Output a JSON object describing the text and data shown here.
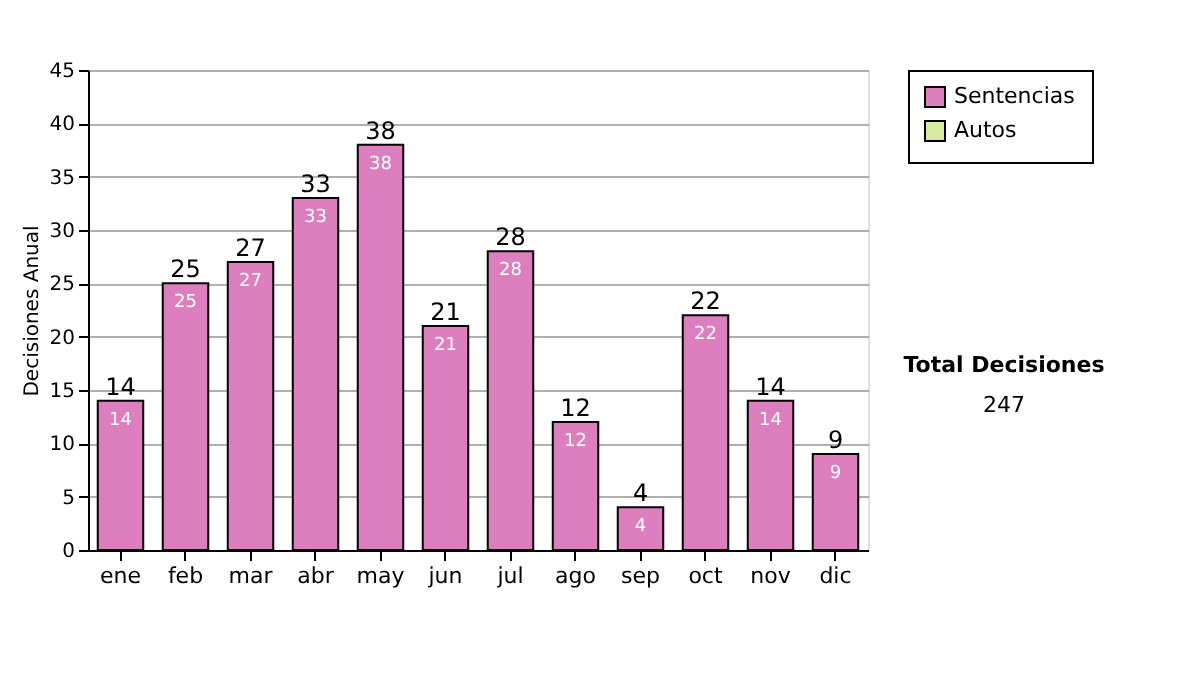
{
  "chart_data": {
    "type": "bar",
    "ylabel": "Decisiones Anual",
    "categories": [
      "ene",
      "feb",
      "mar",
      "abr",
      "may",
      "jun",
      "jul",
      "ago",
      "sep",
      "oct",
      "nov",
      "dic"
    ],
    "series": [
      {
        "name": "Sentencias",
        "color": "#dd7fbf",
        "values": [
          14,
          25,
          27,
          33,
          38,
          21,
          28,
          12,
          4,
          22,
          14,
          9
        ]
      },
      {
        "name": "Autos",
        "color": "#d9eaa0",
        "values": [
          null,
          null,
          null,
          null,
          null,
          null,
          null,
          null,
          null,
          null,
          null,
          null
        ]
      }
    ],
    "totals": [
      "14",
      "25",
      "27",
      "33",
      "38",
      "21",
      "28",
      "12",
      "4",
      "22",
      "14",
      "9"
    ],
    "data_labels": true,
    "ylim": [
      0,
      45
    ],
    "yticks": [
      0,
      5,
      10,
      15,
      20,
      25,
      30,
      35,
      40,
      45
    ],
    "grid": "y",
    "legend": "right",
    "annotations": [
      "Total Decisiones",
      "247"
    ]
  }
}
